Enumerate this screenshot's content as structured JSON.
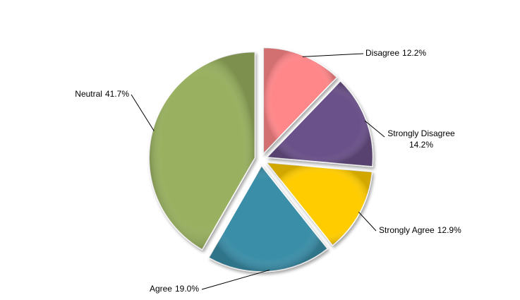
{
  "chart_data": {
    "type": "pie",
    "categories": [
      "Disagree",
      "Strongly Disagree",
      "Strongly Agree",
      "Agree",
      "Neutral"
    ],
    "values": [
      12.2,
      14.2,
      12.9,
      19.0,
      41.7
    ],
    "value_labels": [
      "12.2%",
      "14.2%",
      "12.9%",
      "19.0%",
      "41.7%"
    ],
    "colors": [
      "#ff878a",
      "#6b5189",
      "#ffcc00",
      "#3a8ea8",
      "#98b05e"
    ]
  }
}
